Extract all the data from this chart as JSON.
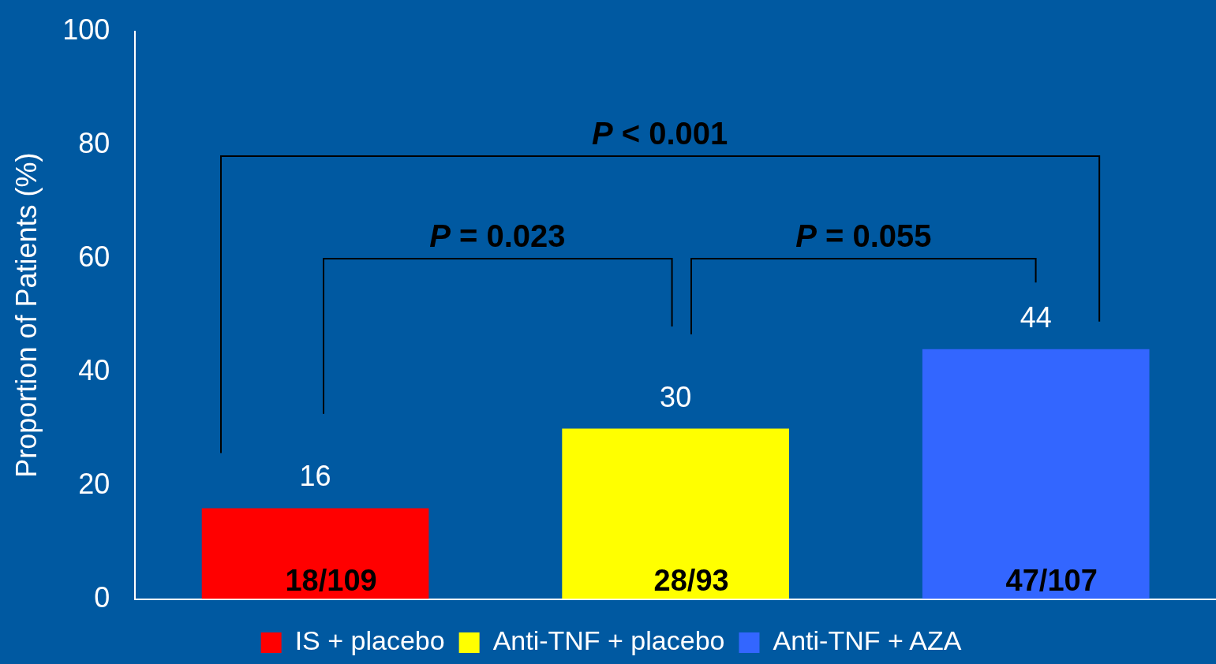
{
  "chart_data": {
    "type": "bar",
    "ylabel": "Proportion of Patients (%)",
    "categories": [
      null,
      null,
      null
    ],
    "series": [
      {
        "name": "IS + placebo",
        "color": "#ff0000",
        "values": [
          16,
          null,
          null
        ]
      },
      {
        "name": "Anti-TNF + placebo",
        "color": "#ffff00",
        "values": [
          null,
          30,
          null
        ]
      },
      {
        "name": "Anti-TNF + AZA",
        "color": "#3366ff",
        "values": [
          null,
          null,
          44
        ]
      }
    ],
    "ylim": [
      0,
      100
    ],
    "yticks": [
      0,
      20,
      40,
      60,
      80,
      100
    ],
    "grid": false,
    "legend": "bottom",
    "data_labels": true,
    "annotations": [
      "P < 0.001",
      "P = 0.023",
      "P = 0.055",
      "18/109",
      "28/93",
      "47/107"
    ]
  }
}
